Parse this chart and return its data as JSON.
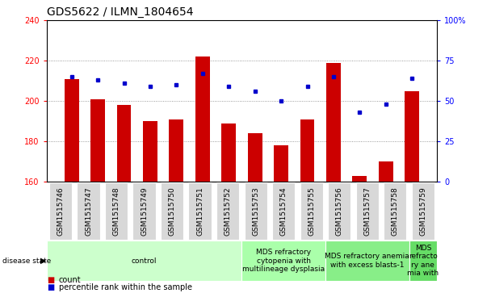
{
  "title": "GDS5622 / ILMN_1804654",
  "samples": [
    "GSM1515746",
    "GSM1515747",
    "GSM1515748",
    "GSM1515749",
    "GSM1515750",
    "GSM1515751",
    "GSM1515752",
    "GSM1515753",
    "GSM1515754",
    "GSM1515755",
    "GSM1515756",
    "GSM1515757",
    "GSM1515758",
    "GSM1515759"
  ],
  "counts": [
    211,
    201,
    198,
    190,
    191,
    222,
    189,
    184,
    178,
    191,
    219,
    163,
    170,
    205
  ],
  "percentiles": [
    65,
    63,
    61,
    59,
    60,
    67,
    59,
    56,
    50,
    59,
    65,
    43,
    48,
    64
  ],
  "ylim_left": [
    160,
    240
  ],
  "ylim_right": [
    0,
    100
  ],
  "yticks_left": [
    160,
    180,
    200,
    220,
    240
  ],
  "yticks_right": [
    0,
    25,
    50,
    75,
    100
  ],
  "ytick_right_labels": [
    "0",
    "25",
    "50",
    "75",
    "100%"
  ],
  "bar_color": "#cc0000",
  "dot_color": "#0000cc",
  "bar_bottom": 160,
  "disease_groups": [
    {
      "label": "control",
      "start": 0,
      "end": 6,
      "color": "#ccffcc"
    },
    {
      "label": "MDS refractory\ncytopenia with\nmultilineage dysplasia",
      "start": 7,
      "end": 9,
      "color": "#aaffaa"
    },
    {
      "label": "MDS refractory anemia\nwith excess blasts-1",
      "start": 10,
      "end": 12,
      "color": "#88ee88"
    },
    {
      "label": "MDS\nrefracto\nry ane\nmia with",
      "start": 13,
      "end": 13,
      "color": "#66dd66"
    }
  ],
  "legend_items": [
    {
      "label": "count",
      "color": "#cc0000"
    },
    {
      "label": "percentile rank within the sample",
      "color": "#0000cc"
    }
  ],
  "title_fontsize": 10,
  "tick_fontsize": 7,
  "label_fontsize": 7,
  "disease_label_fontsize": 6.5
}
